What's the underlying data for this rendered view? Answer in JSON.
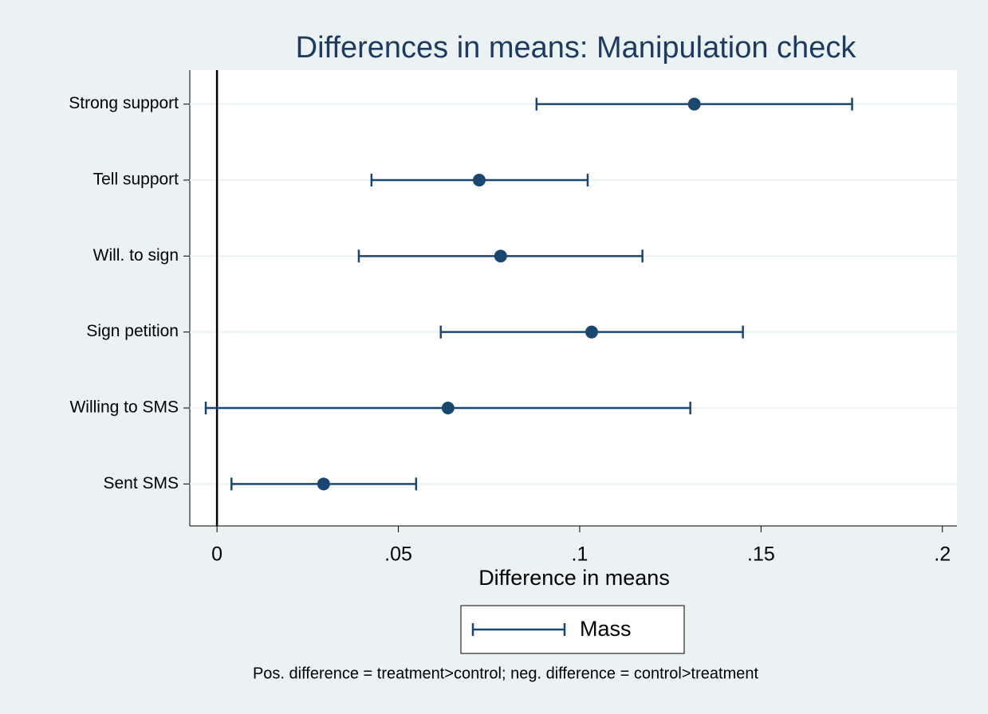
{
  "chart_data": {
    "type": "dotci",
    "title": "Differences in means: Manipulation check",
    "xlabel": "Difference in means",
    "note": "Pos. difference = treatment>control; neg. difference = control>treatment",
    "categories": [
      "Strong support",
      "Tell support",
      "Will. to sign",
      "Sign petition",
      "Willing to SMS",
      "Sent SMS"
    ],
    "series": [
      {
        "name": "Mass",
        "color": "#1a476f",
        "values": [
          0.1316,
          0.0723,
          0.0782,
          0.1033,
          0.0637,
          0.0294
        ],
        "lower": [
          0.0881,
          0.0426,
          0.0391,
          0.0617,
          -0.0031,
          0.004
        ],
        "upper": [
          0.1751,
          0.1022,
          0.1173,
          0.145,
          0.1305,
          0.0549
        ]
      }
    ],
    "xlim": [
      -0.0075,
      0.204
    ],
    "xticks": [
      0,
      {
        "value": 0.05,
        "label": ".05"
      },
      {
        "value": 0.1,
        "label": ".1"
      },
      {
        "value": 0.15,
        "label": ".15"
      },
      {
        "value": 0.2,
        "label": ".2"
      }
    ],
    "xline": 0,
    "grid": true,
    "legend": "bottom"
  }
}
